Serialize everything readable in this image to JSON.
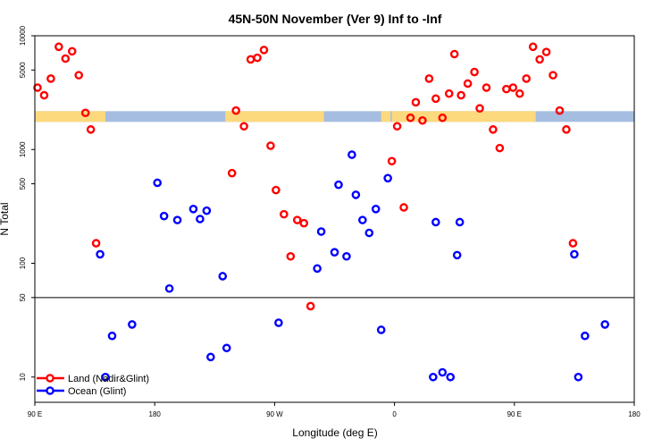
{
  "chart_data": {
    "type": "scatter",
    "title": "45N-50N November (Ver 9)   Inf to -Inf",
    "xlabel": "Longitude (deg E)",
    "ylabel": "N Total",
    "xlim": [
      90,
      540
    ],
    "ylim": [
      6,
      10000
    ],
    "yscale": "log",
    "x_ticks": [
      {
        "value": 90,
        "label": "90 E"
      },
      {
        "value": 180,
        "label": "180"
      },
      {
        "value": 270,
        "label": "90 W"
      },
      {
        "value": 360,
        "label": "0"
      },
      {
        "value": 450,
        "label": "90 E"
      },
      {
        "value": 540,
        "label": "180"
      }
    ],
    "y_ticks": [
      {
        "value": 10,
        "label": "10"
      },
      {
        "value": 50,
        "label": "50"
      },
      {
        "value": 100,
        "label": "100"
      },
      {
        "value": 500,
        "label": "500"
      },
      {
        "value": 1000,
        "label": "1000"
      },
      {
        "value": 5000,
        "label": "5000"
      },
      {
        "value": 10000,
        "label": "10000"
      }
    ],
    "reference_line_y": 50,
    "legend_position": "bottom-left",
    "land_strip": {
      "y_center": 1950,
      "land_color": "#fcd97d",
      "ocean_color": "#a5bde0",
      "land_ranges": [
        [
          90,
          143
        ],
        [
          233,
          307
        ],
        [
          350,
          357
        ],
        [
          358,
          466
        ]
      ]
    },
    "series": [
      {
        "name": "Land (Nadir&Glint)",
        "color": "#ff0000",
        "points": [
          [
            92,
            3500
          ],
          [
            97,
            3000
          ],
          [
            102,
            4200
          ],
          [
            108,
            8000
          ],
          [
            113,
            6300
          ],
          [
            118,
            7300
          ],
          [
            123,
            4500
          ],
          [
            128,
            2100
          ],
          [
            132,
            1500
          ],
          [
            136,
            150
          ],
          [
            238,
            620
          ],
          [
            241,
            2200
          ],
          [
            247,
            1600
          ],
          [
            252,
            6200
          ],
          [
            257,
            6400
          ],
          [
            262,
            7500
          ],
          [
            267,
            1080
          ],
          [
            271,
            440
          ],
          [
            277,
            270
          ],
          [
            282,
            115
          ],
          [
            287,
            240
          ],
          [
            292,
            225
          ],
          [
            297,
            42
          ],
          [
            358,
            790
          ],
          [
            362,
            1600
          ],
          [
            367,
            310
          ],
          [
            372,
            1900
          ],
          [
            376,
            2600
          ],
          [
            381,
            1800
          ],
          [
            386,
            4200
          ],
          [
            391,
            2800
          ],
          [
            396,
            1900
          ],
          [
            401,
            3100
          ],
          [
            405,
            6900
          ],
          [
            410,
            3000
          ],
          [
            415,
            3800
          ],
          [
            420,
            4800
          ],
          [
            424,
            2300
          ],
          [
            429,
            3500
          ],
          [
            434,
            1500
          ],
          [
            439,
            1030
          ],
          [
            444,
            3400
          ],
          [
            449,
            3500
          ],
          [
            454,
            3100
          ],
          [
            459,
            4200
          ],
          [
            464,
            8000
          ],
          [
            469,
            6200
          ],
          [
            474,
            7200
          ],
          [
            479,
            4500
          ],
          [
            484,
            2200
          ],
          [
            489,
            1500
          ],
          [
            494,
            150
          ]
        ]
      },
      {
        "name": "Ocean (Glint)",
        "color": "#0000ff",
        "points": [
          [
            139,
            120
          ],
          [
            143,
            10
          ],
          [
            148,
            23
          ],
          [
            163,
            29
          ],
          [
            182,
            510
          ],
          [
            187,
            260
          ],
          [
            191,
            60
          ],
          [
            197,
            240
          ],
          [
            209,
            300
          ],
          [
            214,
            245
          ],
          [
            219,
            290
          ],
          [
            222,
            15
          ],
          [
            231,
            77
          ],
          [
            234,
            18
          ],
          [
            273,
            30
          ],
          [
            302,
            90
          ],
          [
            305,
            190
          ],
          [
            315,
            125
          ],
          [
            318,
            490
          ],
          [
            324,
            115
          ],
          [
            328,
            900
          ],
          [
            331,
            400
          ],
          [
            336,
            240
          ],
          [
            341,
            185
          ],
          [
            346,
            300
          ],
          [
            350,
            26
          ],
          [
            355,
            560
          ],
          [
            389,
            10
          ],
          [
            391,
            230
          ],
          [
            396,
            11
          ],
          [
            402,
            10
          ],
          [
            407,
            118
          ],
          [
            409,
            230
          ],
          [
            495,
            120
          ],
          [
            498,
            10
          ],
          [
            503,
            23
          ],
          [
            518,
            29
          ]
        ]
      }
    ]
  }
}
